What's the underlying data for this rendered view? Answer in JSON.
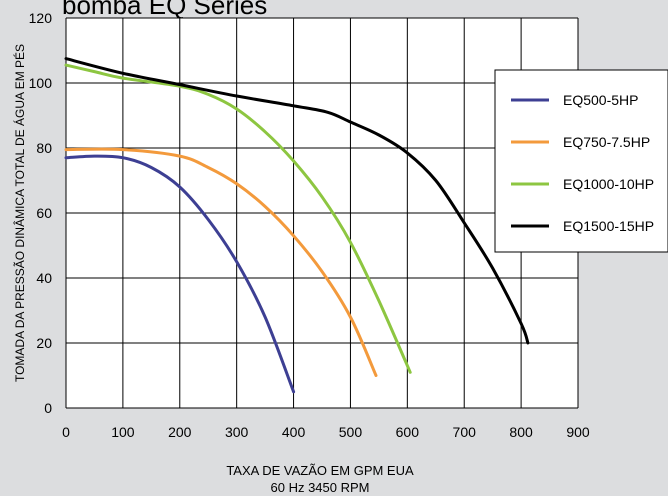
{
  "chart_data": {
    "type": "line",
    "title": "bomba EQ Series",
    "xlabel": "TAXA DE VAZÃO EM GPM EUA",
    "xlabel_sub": "60 Hz 3450 RPM",
    "ylabel": "TOMADA DA PRESSÃO DINÂMICA TOTAL DE ÁGUA EM PÉS",
    "xlim": [
      0,
      900
    ],
    "ylim": [
      0,
      120
    ],
    "xticks": [
      0,
      100,
      200,
      300,
      400,
      500,
      600,
      700,
      800,
      900
    ],
    "yticks": [
      0,
      20,
      40,
      60,
      80,
      100,
      120
    ],
    "grid": true,
    "legend_position": "right",
    "series": [
      {
        "name": "EQ500-5HP",
        "color": "#3d3f93",
        "points": [
          [
            0,
            77
          ],
          [
            50,
            77.5
          ],
          [
            100,
            77
          ],
          [
            150,
            74
          ],
          [
            200,
            68
          ],
          [
            250,
            58
          ],
          [
            300,
            45
          ],
          [
            350,
            28
          ],
          [
            400,
            5
          ]
        ]
      },
      {
        "name": "EQ750-7.5HP",
        "color": "#f39a3c",
        "points": [
          [
            0,
            79.5
          ],
          [
            100,
            79.5
          ],
          [
            200,
            77.5
          ],
          [
            250,
            74
          ],
          [
            300,
            69
          ],
          [
            350,
            62
          ],
          [
            400,
            53
          ],
          [
            450,
            42
          ],
          [
            500,
            28
          ],
          [
            545,
            10
          ]
        ]
      },
      {
        "name": "EQ1000-10HP",
        "color": "#8dc641",
        "points": [
          [
            0,
            105.5
          ],
          [
            50,
            103.5
          ],
          [
            100,
            101.5
          ],
          [
            200,
            99
          ],
          [
            250,
            96.5
          ],
          [
            300,
            92
          ],
          [
            350,
            85
          ],
          [
            400,
            76
          ],
          [
            450,
            65
          ],
          [
            500,
            51
          ],
          [
            550,
            33
          ],
          [
            605,
            11
          ]
        ]
      },
      {
        "name": "EQ1500-15HP",
        "color": "#000000",
        "points": [
          [
            0,
            107.5
          ],
          [
            100,
            103
          ],
          [
            200,
            99.5
          ],
          [
            300,
            96
          ],
          [
            400,
            93
          ],
          [
            460,
            91
          ],
          [
            500,
            88
          ],
          [
            550,
            84
          ],
          [
            600,
            78.5
          ],
          [
            650,
            70
          ],
          [
            700,
            57
          ],
          [
            750,
            43
          ],
          [
            800,
            26
          ],
          [
            812,
            20
          ]
        ]
      }
    ]
  }
}
